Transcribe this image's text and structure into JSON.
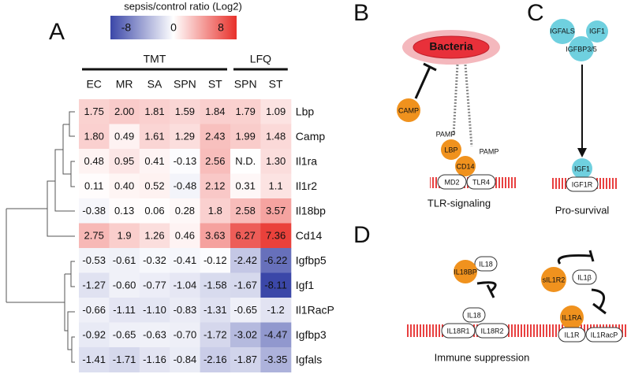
{
  "panels": {
    "a": "A",
    "b": "B",
    "c": "C",
    "d": "D"
  },
  "heatmap": {
    "colorbar_title": "sepsis/control ratio (Log2)",
    "colorbar_ticks": [
      -8,
      0,
      8
    ],
    "groups": [
      {
        "label": "TMT",
        "columns": [
          "EC",
          "MR",
          "SA",
          "SPN",
          "ST"
        ]
      },
      {
        "label": "LFQ",
        "columns": [
          "SPN",
          "ST"
        ]
      }
    ],
    "rows": [
      {
        "label": "Lbp",
        "cells": [
          "1.75",
          "2.00",
          "1.81",
          "1.59",
          "1.84",
          "1.79",
          "1.09"
        ]
      },
      {
        "label": "Camp",
        "cells": [
          "1.80",
          "0.49",
          "1.61",
          "1.29",
          "2.43",
          "1.99",
          "1.48"
        ]
      },
      {
        "label": "Il1ra",
        "cells": [
          "0.48",
          "0.95",
          "0.41",
          "-0.13",
          "2.56",
          "N.D.",
          "1.30"
        ]
      },
      {
        "label": "Il1r2",
        "cells": [
          "0.11",
          "0.40",
          "0.52",
          "-0.48",
          "2.12",
          "0.31",
          "1.1"
        ]
      },
      {
        "label": "Il18bp",
        "cells": [
          "-0.38",
          "0.13",
          "0.06",
          "0.28",
          "1.8",
          "2.58",
          "3.57"
        ]
      },
      {
        "label": "Cd14",
        "cells": [
          "2.75",
          "1.9",
          "1.26",
          "0.46",
          "3.63",
          "6.27",
          "7.36"
        ]
      },
      {
        "label": "Igfbp5",
        "cells": [
          "-0.53",
          "-0.61",
          "-0.32",
          "-0.41",
          "-0.12",
          "-2.42",
          "-6.22"
        ]
      },
      {
        "label": "Igf1",
        "cells": [
          "-1.27",
          "-0.60",
          "-0.77",
          "-1.04",
          "-1.58",
          "-1.67",
          "-8.11"
        ]
      },
      {
        "label": "Il1RacP",
        "cells": [
          "-0.66",
          "-1.11",
          "-1.10",
          "-0.83",
          "-1.31",
          "-0.65",
          "-1.2"
        ]
      },
      {
        "label": "Igfbp3",
        "cells": [
          "-0.92",
          "-0.65",
          "-0.63",
          "-0.70",
          "-1.72",
          "-3.02",
          "-4.47"
        ]
      },
      {
        "label": "Igfals",
        "cells": [
          "-1.41",
          "-1.71",
          "-1.16",
          "-0.84",
          "-2.16",
          "-1.87",
          "-3.35"
        ]
      }
    ]
  },
  "tlr": {
    "bacteria": "Bacteria",
    "camp": "CAMP",
    "pamp1": "PAMP",
    "lbp": "LBP",
    "pamp2": "PAMP",
    "cd14": "CD14",
    "md2": "MD2",
    "tlr4": "TLR4",
    "caption": "TLR-signaling"
  },
  "igf": {
    "igfals": "IGFALS",
    "igf1a": "IGF1",
    "igfbp": "IGFBP3/5",
    "igf1b": "IGF1",
    "igf1r": "IGF1R",
    "caption": "Pro-survival"
  },
  "immune": {
    "il18bp": "IL18BP",
    "il18a": "IL18",
    "sil1r2": "sIL1R2",
    "il1b": "IL1β",
    "il18b": "IL18",
    "il18r1": "IL18R1",
    "il18r2": "IL18R2",
    "il1ra": "IL1RA",
    "il1r": "IL1R",
    "il1racp": "IL1RacP",
    "caption": "Immune suppression"
  }
}
